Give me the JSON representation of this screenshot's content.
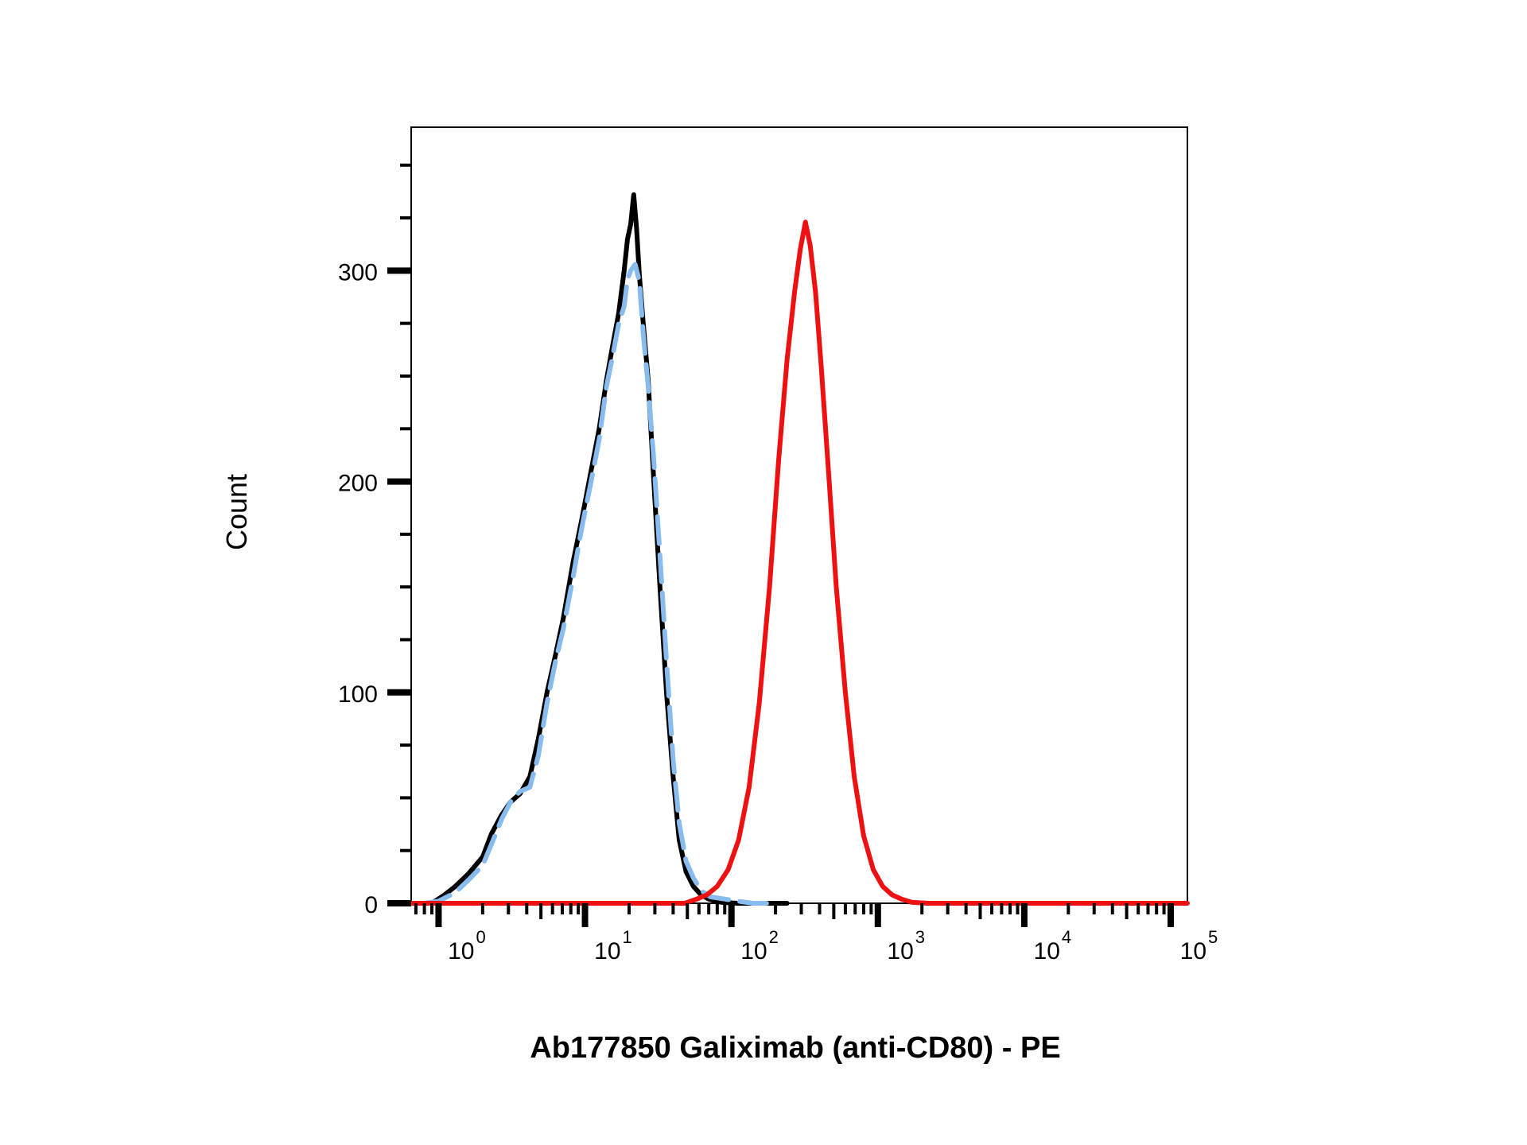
{
  "chart_data": {
    "type": "line",
    "title": "",
    "xlabel": "Ab177850 Galiximab (anti-CD80) - PE",
    "ylabel": "Count",
    "x_scale": "log",
    "xlim": [
      0.65,
      130000
    ],
    "ylim": [
      0,
      368
    ],
    "x_ticks": [
      {
        "value": 1,
        "base": "10",
        "exp": "0"
      },
      {
        "value": 10,
        "base": "10",
        "exp": "1"
      },
      {
        "value": 100,
        "base": "10",
        "exp": "2"
      },
      {
        "value": 1000,
        "base": "10",
        "exp": "3"
      },
      {
        "value": 10000,
        "base": "10",
        "exp": "4"
      },
      {
        "value": 100000,
        "base": "10",
        "exp": "5"
      }
    ],
    "y_ticks": [
      {
        "value": 0,
        "label": "0"
      },
      {
        "value": 100,
        "label": "100"
      },
      {
        "value": 200,
        "label": "200"
      },
      {
        "value": 300,
        "label": "300"
      }
    ],
    "grid": false,
    "legend": "none",
    "series": [
      {
        "color": "#000000",
        "dash": "solid",
        "points": [
          [
            0.7,
            0
          ],
          [
            0.9,
            0
          ],
          [
            1.1,
            4
          ],
          [
            1.3,
            8
          ],
          [
            1.6,
            14
          ],
          [
            2.0,
            22
          ],
          [
            2.3,
            33
          ],
          [
            2.7,
            42
          ],
          [
            3.1,
            48
          ],
          [
            3.6,
            52
          ],
          [
            4.2,
            60
          ],
          [
            4.8,
            78
          ],
          [
            5.5,
            100
          ],
          [
            6.3,
            118
          ],
          [
            7.1,
            135
          ],
          [
            8.3,
            162
          ],
          [
            9.5,
            182
          ],
          [
            11.0,
            205
          ],
          [
            12.5,
            225
          ],
          [
            14.0,
            248
          ],
          [
            15.5,
            265
          ],
          [
            17.0,
            280
          ],
          [
            18.5,
            300
          ],
          [
            19.5,
            315
          ],
          [
            20.5,
            322
          ],
          [
            21.5,
            336
          ],
          [
            22.5,
            320
          ],
          [
            23.5,
            298
          ],
          [
            25.0,
            275
          ],
          [
            27.0,
            248
          ],
          [
            29.5,
            200
          ],
          [
            32.5,
            150
          ],
          [
            36.0,
            100
          ],
          [
            40.0,
            60
          ],
          [
            44.0,
            30
          ],
          [
            49.0,
            15
          ],
          [
            55.0,
            8
          ],
          [
            62.0,
            4
          ],
          [
            70.0,
            2
          ],
          [
            85.0,
            0.5
          ],
          [
            110.0,
            0
          ],
          [
            160.0,
            0
          ],
          [
            240.0,
            0
          ]
        ]
      },
      {
        "color": "#88bbee",
        "dash": "dashed",
        "points": [
          [
            0.8,
            0
          ],
          [
            1.0,
            1
          ],
          [
            1.3,
            5
          ],
          [
            1.6,
            11
          ],
          [
            2.0,
            18
          ],
          [
            2.3,
            28
          ],
          [
            2.7,
            40
          ],
          [
            3.1,
            48
          ],
          [
            3.6,
            53
          ],
          [
            4.2,
            55
          ],
          [
            4.8,
            70
          ],
          [
            5.5,
            95
          ],
          [
            6.3,
            115
          ],
          [
            7.1,
            130
          ],
          [
            8.3,
            155
          ],
          [
            9.5,
            178
          ],
          [
            11.0,
            200
          ],
          [
            12.5,
            220
          ],
          [
            14.0,
            245
          ],
          [
            15.5,
            260
          ],
          [
            17.0,
            275
          ],
          [
            18.5,
            283
          ],
          [
            19.5,
            296
          ],
          [
            20.5,
            300
          ],
          [
            22.0,
            303
          ],
          [
            23.5,
            295
          ],
          [
            25.0,
            270
          ],
          [
            27.0,
            245
          ],
          [
            29.5,
            210
          ],
          [
            32.5,
            165
          ],
          [
            36.0,
            115
          ],
          [
            40.0,
            68
          ],
          [
            44.0,
            38
          ],
          [
            49.0,
            20
          ],
          [
            55.0,
            12
          ],
          [
            62.0,
            6
          ],
          [
            72.0,
            3
          ],
          [
            90.0,
            2
          ],
          [
            110.0,
            1
          ],
          [
            140.0,
            0
          ],
          [
            180.0,
            0
          ]
        ]
      },
      {
        "color": "#ee1111",
        "dash": "solid",
        "points": [
          [
            0.65,
            0
          ],
          [
            3.0,
            0
          ],
          [
            8.0,
            0
          ],
          [
            20.0,
            0
          ],
          [
            48.0,
            0
          ],
          [
            58.0,
            2
          ],
          [
            68.0,
            4
          ],
          [
            80.0,
            8
          ],
          [
            95.0,
            16
          ],
          [
            112.0,
            30
          ],
          [
            132.0,
            55
          ],
          [
            155.0,
            95
          ],
          [
            182.0,
            150
          ],
          [
            210.0,
            210
          ],
          [
            240.0,
            258
          ],
          [
            270.0,
            290
          ],
          [
            295.0,
            310
          ],
          [
            320.0,
            323
          ],
          [
            345.0,
            312
          ],
          [
            375.0,
            290
          ],
          [
            410.0,
            255
          ],
          [
            460.0,
            205
          ],
          [
            520.0,
            150
          ],
          [
            600.0,
            100
          ],
          [
            690.0,
            60
          ],
          [
            800.0,
            32
          ],
          [
            930.0,
            16
          ],
          [
            1080.0,
            8
          ],
          [
            1250.0,
            4
          ],
          [
            1450.0,
            2
          ],
          [
            1700.0,
            0.5
          ],
          [
            2200.0,
            0
          ],
          [
            5000.0,
            0
          ],
          [
            30000.0,
            0
          ],
          [
            130000.0,
            0
          ]
        ]
      }
    ]
  }
}
